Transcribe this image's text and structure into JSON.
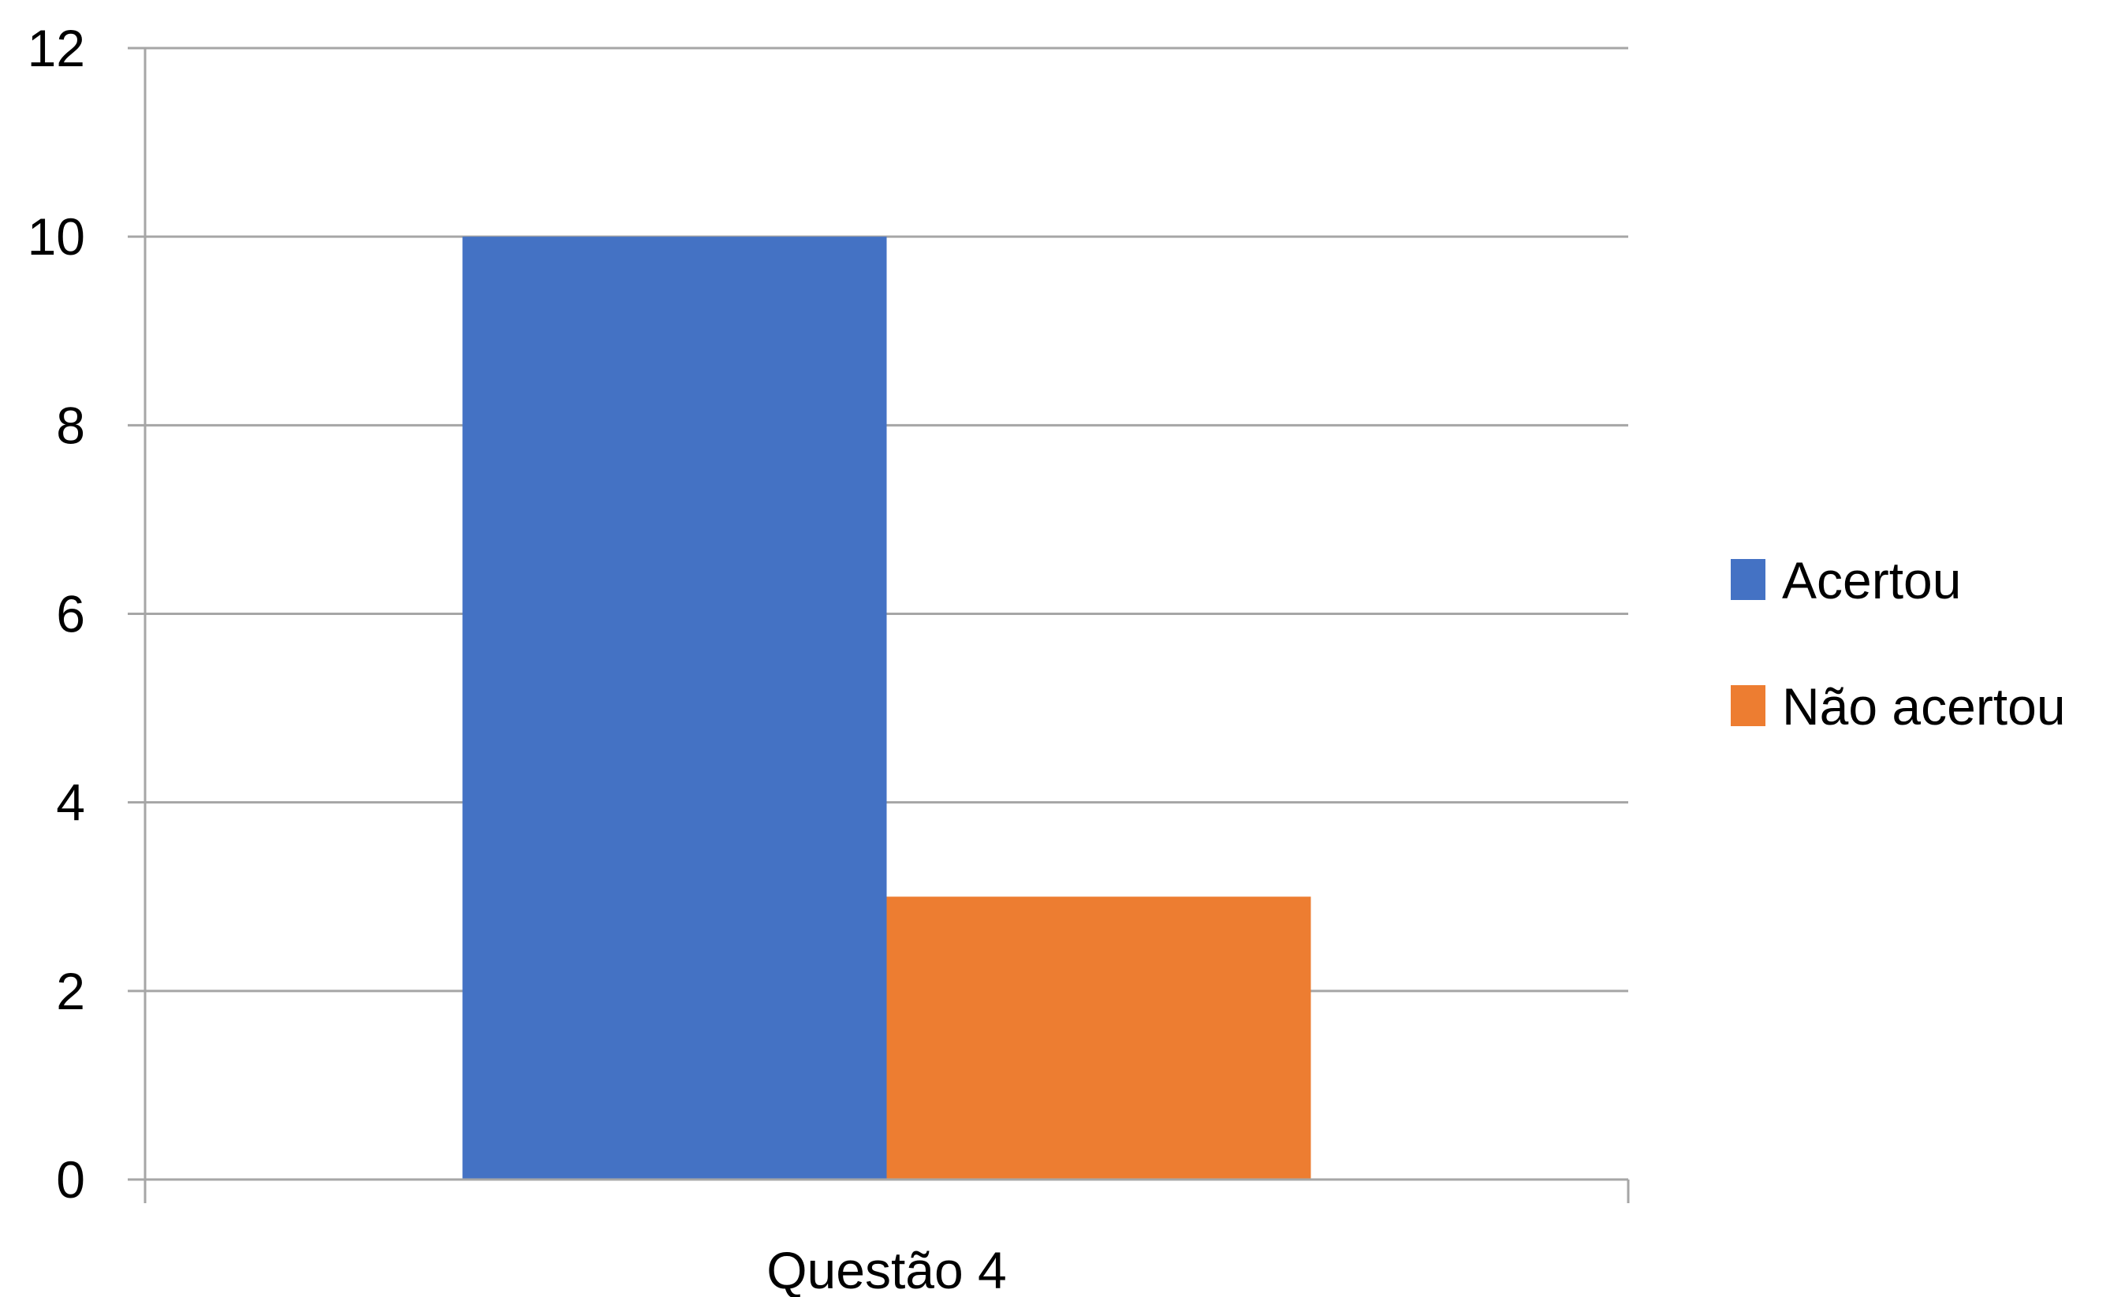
{
  "chart_data": {
    "type": "bar",
    "categories": [
      "Questão 4"
    ],
    "series": [
      {
        "name": "Acertou",
        "values": [
          10
        ],
        "color": "#4472C4"
      },
      {
        "name": "Não acertou",
        "values": [
          3
        ],
        "color": "#ED7D31"
      }
    ],
    "title": "",
    "xlabel": "",
    "ylabel": "",
    "ylim": [
      0,
      12
    ],
    "yticks": [
      "0",
      "2",
      "4",
      "6",
      "8",
      "10",
      "12"
    ],
    "grid": true,
    "legend_position": "right",
    "gridline_color": "#A6A6A6"
  }
}
